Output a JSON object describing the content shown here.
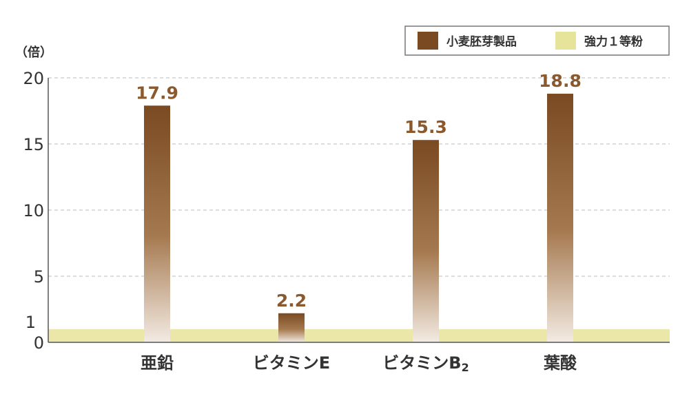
{
  "chart_data": {
    "type": "bar",
    "unit_label": "（倍）",
    "categories": [
      "亜鉛",
      "ビタミンE",
      "ビタミンB",
      "葉酸"
    ],
    "category_subscripts": [
      "",
      "",
      "2",
      ""
    ],
    "series": [
      {
        "name": "小麦胚芽製品",
        "values": [
          17.9,
          2.2,
          15.3,
          18.8
        ],
        "color": "#7a4a22"
      },
      {
        "name": "強力１等粉",
        "values": [
          1,
          1,
          1,
          1
        ],
        "color": "#e6e39a"
      }
    ],
    "value_labels": [
      "17.9",
      "2.2",
      "15.3",
      "18.8"
    ],
    "y_ticks": [
      "0",
      "5",
      "10",
      "15",
      "20"
    ],
    "baseline_tick": "1",
    "baseline_tick_color": "#c8cc2a",
    "ylim": [
      0,
      20
    ],
    "grid": true,
    "legend_position": "top-right",
    "value_label_color": "#8a5a2e"
  }
}
